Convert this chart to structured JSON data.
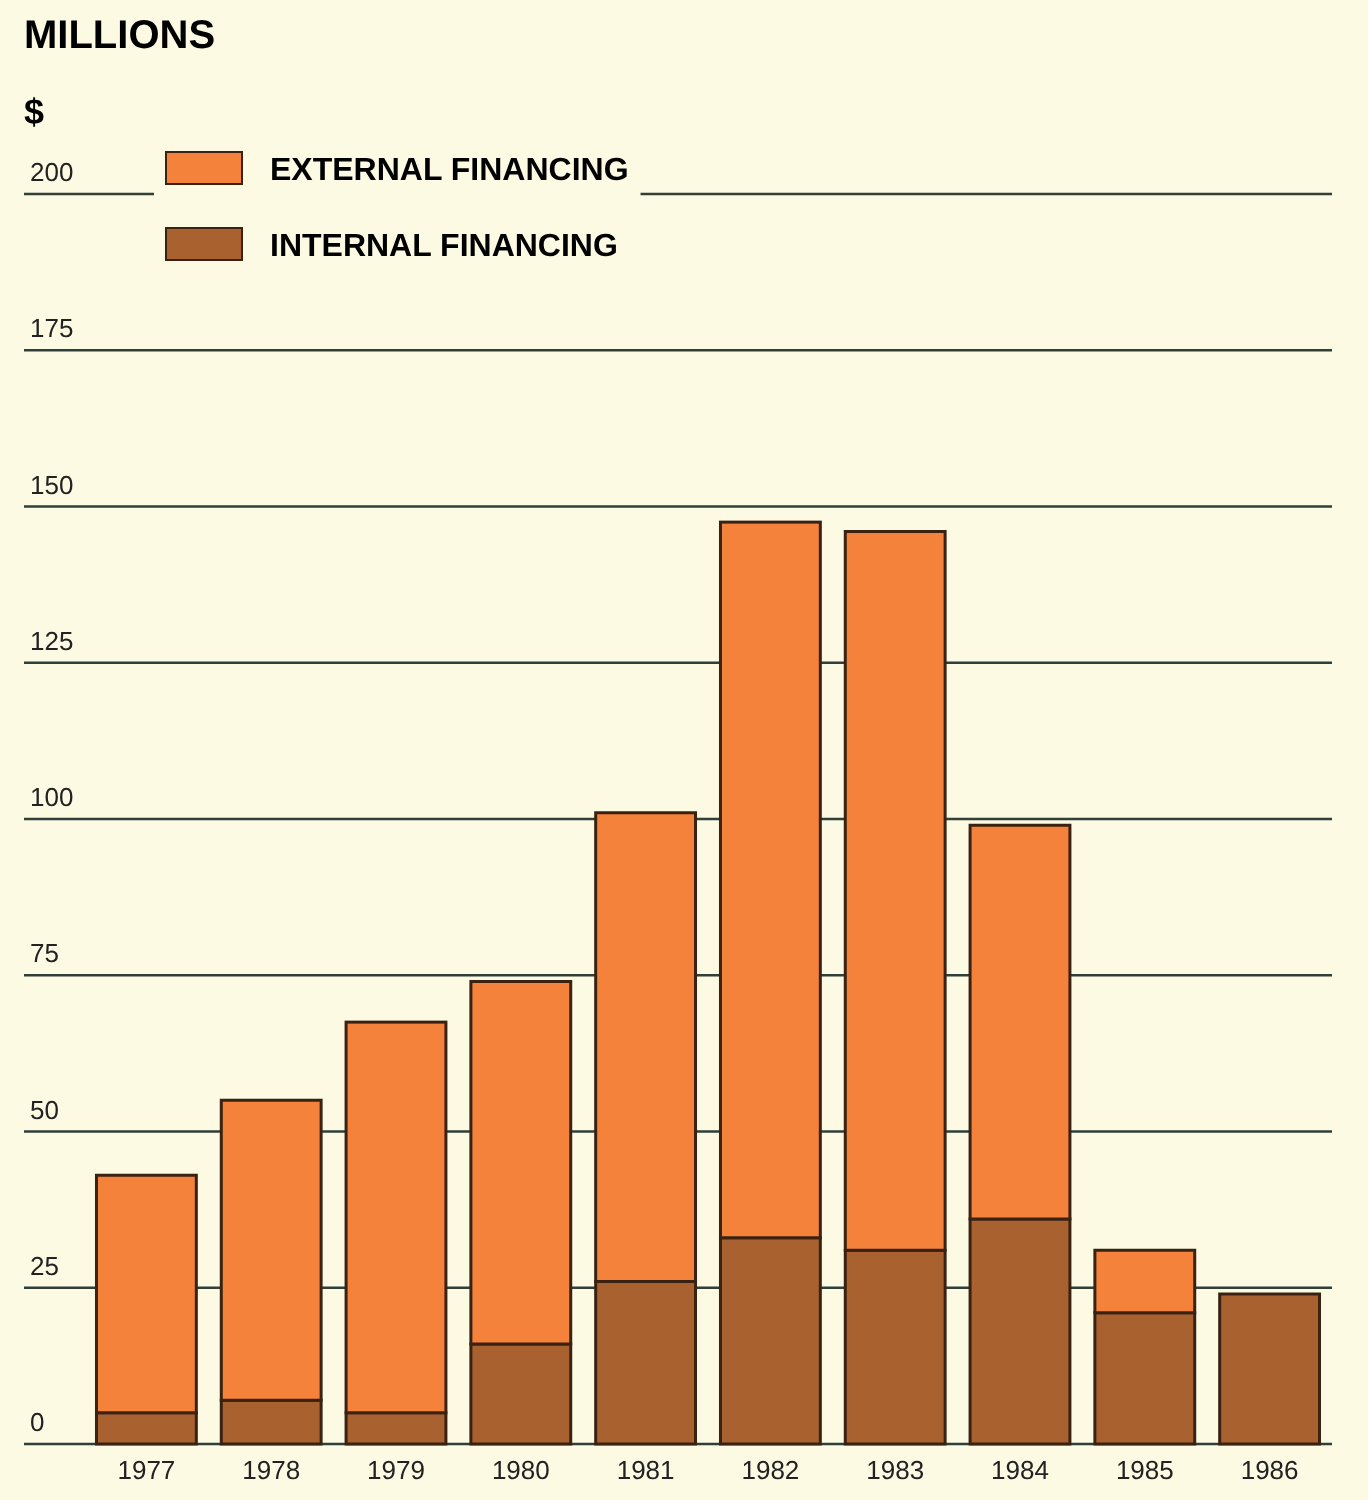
{
  "chart_data": {
    "type": "bar",
    "title": "MILLIONS",
    "ylabel": "$",
    "stacked": true,
    "categories": [
      "1977",
      "1978",
      "1979",
      "1980",
      "1981",
      "1982",
      "1983",
      "1984",
      "1985",
      "1986"
    ],
    "series": [
      {
        "name": "INTERNAL FINANCING",
        "color": "#a8612f",
        "values": [
          5,
          7,
          5,
          16,
          26,
          33,
          31,
          36,
          21,
          24
        ]
      },
      {
        "name": "EXTERNAL FINANCING",
        "color": "#f5823a",
        "values": [
          38,
          48,
          62.5,
          58,
          75,
          114.5,
          115,
          63,
          10,
          0
        ]
      }
    ],
    "ylim": [
      0,
      200
    ],
    "yticks": [
      0,
      25,
      50,
      75,
      100,
      125,
      150,
      175,
      200
    ],
    "grid": "y",
    "legend": "top left"
  }
}
